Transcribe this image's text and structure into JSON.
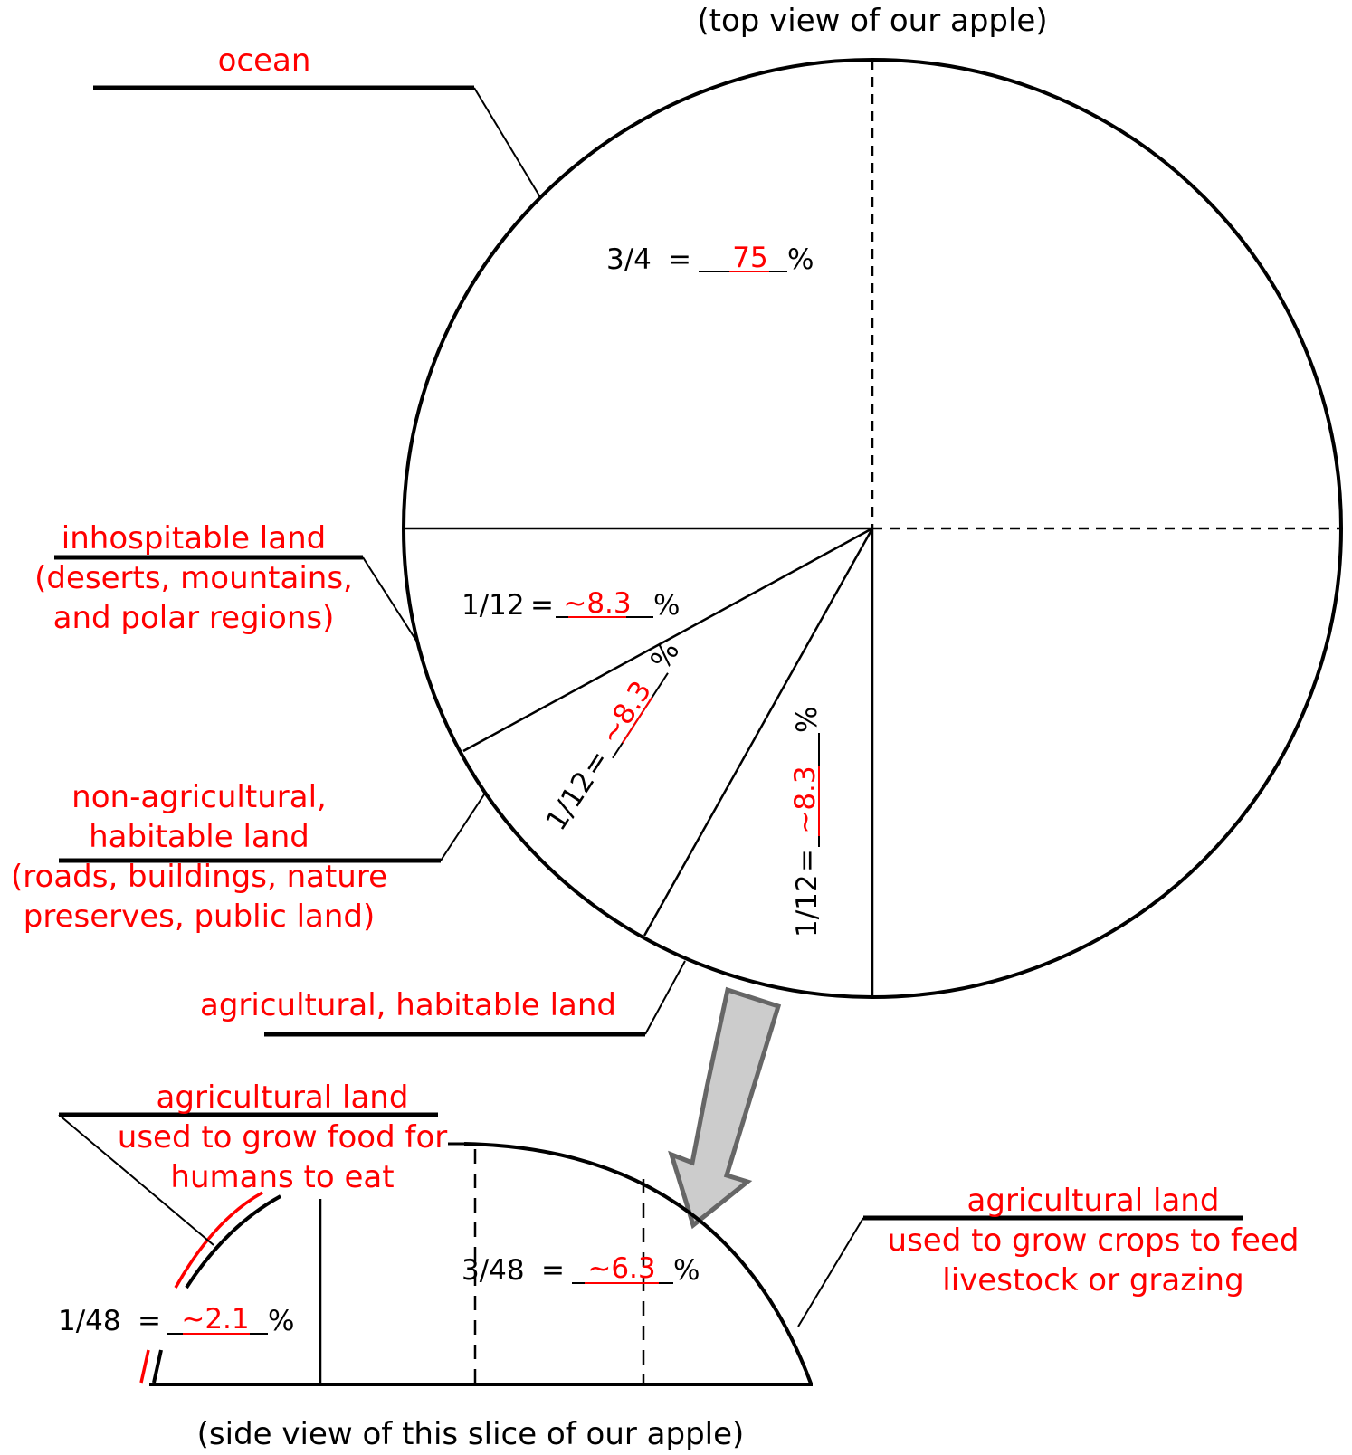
{
  "top_caption": "(top view of our apple)",
  "bottom_caption": "(side view of this slice of our apple)",
  "labels": {
    "ocean": "ocean",
    "inhospitable": [
      "inhospitable land",
      "(deserts, mountains,",
      "and polar regions)"
    ],
    "non_agricultural": [
      "non-agricultural,",
      "habitable land",
      "(roads, buildings, nature",
      "preserves, public land)"
    ],
    "agricultural": "agricultural, habitable land",
    "food_for_humans": [
      "agricultural land",
      "used to grow food for",
      "humans to eat"
    ],
    "feed_livestock": [
      "agricultural land",
      "used to grow crops to feed",
      "livestock or grazing"
    ]
  },
  "fractions": {
    "ocean": {
      "fraction": "3/4",
      "answer": "75"
    },
    "inhospitable": {
      "fraction": "1/12",
      "answer": "~8.3"
    },
    "non_agricultural": {
      "fraction": "1/12",
      "answer": "~8.3"
    },
    "agricultural": {
      "fraction": "1/12",
      "answer": "~8.3"
    },
    "food_for_humans": {
      "fraction": "1/48",
      "answer": "~2.1"
    },
    "feed_livestock": {
      "fraction": "3/48",
      "answer": "~6.3"
    }
  },
  "equals": "=",
  "percent": "%",
  "colors": {
    "answer": "#ff0000",
    "lines": "#000000",
    "arrow_fill": "#cccccc",
    "arrow_stroke": "#666666"
  }
}
